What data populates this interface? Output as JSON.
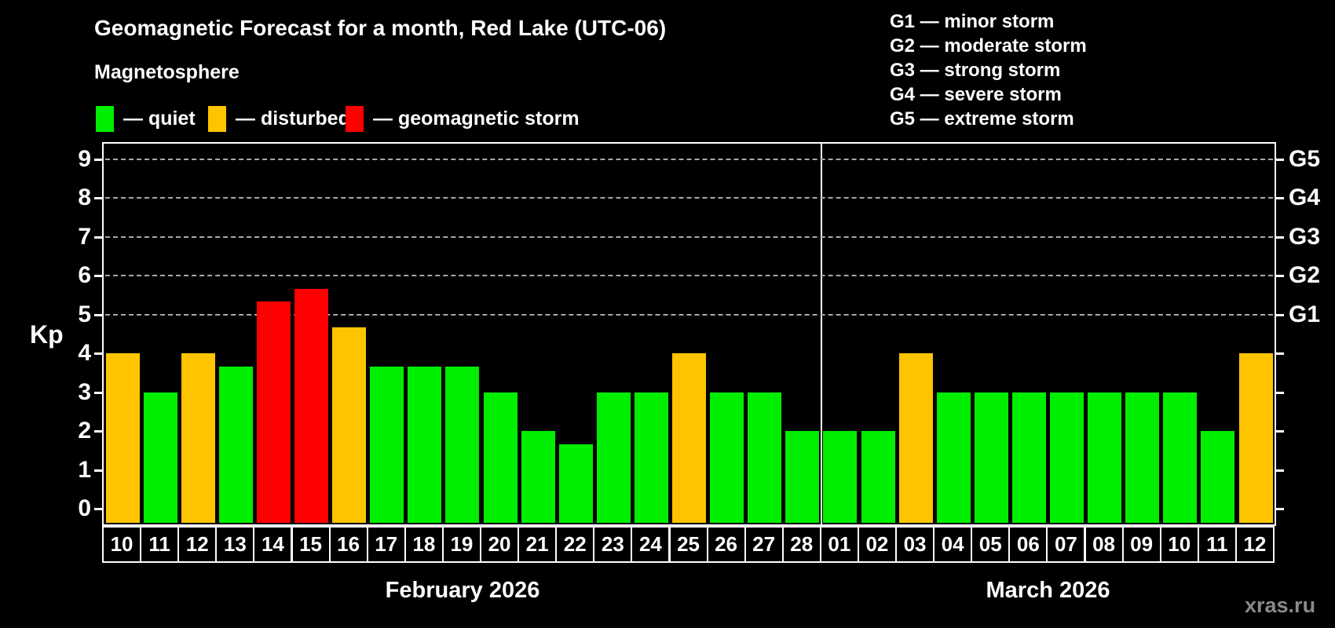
{
  "title": "Geomagnetic Forecast for a month, Red Lake (UTC-06)",
  "subtitle": "Magnetosphere",
  "magnetosphere_legend": [
    {
      "label": "— quiet",
      "status": "quiet"
    },
    {
      "label": "— disturbed",
      "status": "disturbed"
    },
    {
      "label": "— geomagnetic storm",
      "status": "storm"
    }
  ],
  "g_scale_legend": [
    "G1 — minor storm",
    "G2 — moderate storm",
    "G3 — strong storm",
    "G4 — severe storm",
    "G5 — extreme storm"
  ],
  "colors": {
    "quiet": "#00ee00",
    "disturbed": "#ffc400",
    "storm": "#ff0000",
    "axis": "#ffffff",
    "grid": "#a8a8a8",
    "background": "#000000",
    "watermark": "#8a8a8a"
  },
  "watermark": "xras.ru",
  "chart_data": {
    "type": "bar",
    "title": "Geomagnetic Forecast for a month, Red Lake (UTC-06)",
    "ylabel": "Kp",
    "ylim": [
      -0.4,
      9.4
    ],
    "y_ticks": [
      0,
      1,
      2,
      3,
      4,
      5,
      6,
      7,
      8,
      9
    ],
    "gridlines_kp": [
      5,
      6,
      7,
      8,
      9
    ],
    "grid_style": "horizontal dashed, only at G-storm levels 5-9",
    "right_axis": [
      {
        "label": "G1",
        "kp": 5
      },
      {
        "label": "G2",
        "kp": 6
      },
      {
        "label": "G3",
        "kp": 7
      },
      {
        "label": "G4",
        "kp": 8
      },
      {
        "label": "G5",
        "kp": 9
      }
    ],
    "legend_position": "top-left swatches; G-scale text top-right",
    "months": [
      {
        "label": "February 2026",
        "days": [
          {
            "date": "10",
            "kp": 4.0,
            "status": "disturbed"
          },
          {
            "date": "11",
            "kp": 3.0,
            "status": "quiet"
          },
          {
            "date": "12",
            "kp": 4.0,
            "status": "disturbed"
          },
          {
            "date": "13",
            "kp": 3.67,
            "status": "quiet"
          },
          {
            "date": "14",
            "kp": 5.33,
            "status": "storm"
          },
          {
            "date": "15",
            "kp": 5.67,
            "status": "storm"
          },
          {
            "date": "16",
            "kp": 4.67,
            "status": "disturbed"
          },
          {
            "date": "17",
            "kp": 3.67,
            "status": "quiet"
          },
          {
            "date": "18",
            "kp": 3.67,
            "status": "quiet"
          },
          {
            "date": "19",
            "kp": 3.67,
            "status": "quiet"
          },
          {
            "date": "20",
            "kp": 3.0,
            "status": "quiet"
          },
          {
            "date": "21",
            "kp": 2.0,
            "status": "quiet"
          },
          {
            "date": "22",
            "kp": 1.67,
            "status": "quiet"
          },
          {
            "date": "23",
            "kp": 3.0,
            "status": "quiet"
          },
          {
            "date": "24",
            "kp": 3.0,
            "status": "quiet"
          },
          {
            "date": "25",
            "kp": 4.0,
            "status": "disturbed"
          },
          {
            "date": "26",
            "kp": 3.0,
            "status": "quiet"
          },
          {
            "date": "27",
            "kp": 3.0,
            "status": "quiet"
          },
          {
            "date": "28",
            "kp": 2.0,
            "status": "quiet"
          }
        ]
      },
      {
        "label": "March 2026",
        "days": [
          {
            "date": "01",
            "kp": 2.0,
            "status": "quiet"
          },
          {
            "date": "02",
            "kp": 2.0,
            "status": "quiet"
          },
          {
            "date": "03",
            "kp": 4.0,
            "status": "disturbed"
          },
          {
            "date": "04",
            "kp": 3.0,
            "status": "quiet"
          },
          {
            "date": "05",
            "kp": 3.0,
            "status": "quiet"
          },
          {
            "date": "06",
            "kp": 3.0,
            "status": "quiet"
          },
          {
            "date": "07",
            "kp": 3.0,
            "status": "quiet"
          },
          {
            "date": "08",
            "kp": 3.0,
            "status": "quiet"
          },
          {
            "date": "09",
            "kp": 3.0,
            "status": "quiet"
          },
          {
            "date": "10",
            "kp": 3.0,
            "status": "quiet"
          },
          {
            "date": "11",
            "kp": 2.0,
            "status": "quiet"
          },
          {
            "date": "12",
            "kp": 4.0,
            "status": "disturbed"
          }
        ]
      }
    ]
  }
}
